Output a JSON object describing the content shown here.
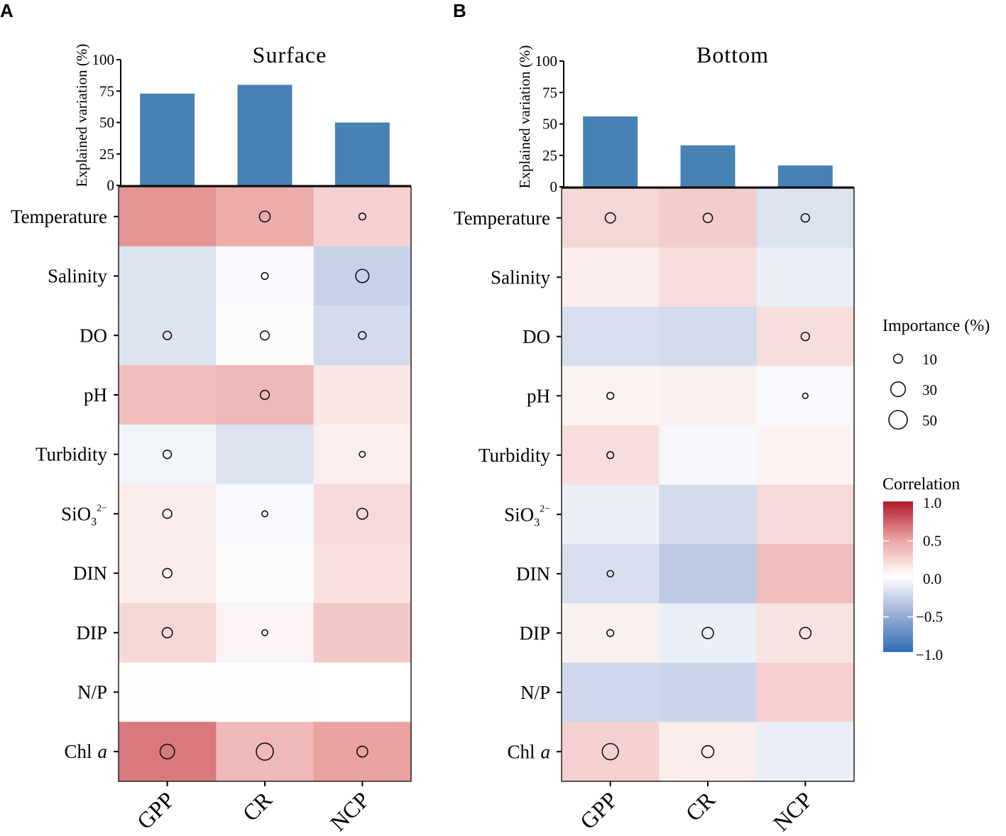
{
  "panel_letters": [
    "A",
    "B"
  ],
  "chart_data": [
    {
      "type": "heatmap",
      "title": "Surface",
      "bar_ylabel": "Explained variation (%)",
      "bar_ylim": [
        0,
        100
      ],
      "bar_yticks": [
        "0",
        "25",
        "50",
        "75",
        "100"
      ],
      "columns": [
        "GPP",
        "CR",
        "NCP"
      ],
      "explained_variation": [
        73,
        80,
        50
      ],
      "rows": [
        {
          "label": "Temperature",
          "correlation": [
            0.55,
            0.45,
            0.25
          ],
          "importance": [
            0,
            20,
            8
          ]
        },
        {
          "label": "Salinity",
          "correlation": [
            -0.18,
            -0.03,
            -0.28
          ],
          "importance": [
            0,
            8,
            30
          ]
        },
        {
          "label": "DO",
          "correlation": [
            -0.17,
            0.02,
            -0.22
          ],
          "importance": [
            12,
            14,
            10
          ]
        },
        {
          "label": "pH",
          "correlation": [
            0.35,
            0.38,
            0.13
          ],
          "importance": [
            0,
            14,
            0
          ]
        },
        {
          "label": "Turbidity",
          "correlation": [
            -0.07,
            -0.17,
            0.09
          ],
          "importance": [
            12,
            0,
            6
          ]
        },
        {
          "label": "SiO",
          "sub": "3",
          "sup": "2−",
          "correlation": [
            0.1,
            -0.04,
            0.2
          ],
          "importance": [
            14,
            6,
            20
          ]
        },
        {
          "label": "DIN",
          "correlation": [
            0.1,
            0.02,
            0.17
          ],
          "importance": [
            15,
            0,
            0
          ]
        },
        {
          "label": "DIP",
          "correlation": [
            0.22,
            0.06,
            0.3
          ],
          "importance": [
            18,
            6,
            0
          ]
        },
        {
          "label": "N/P",
          "correlation": [
            0.01,
            0.01,
            0.0
          ],
          "importance": [
            0,
            0,
            0
          ]
        },
        {
          "label": "Chl",
          "italic": "a",
          "correlation": [
            0.65,
            0.38,
            0.5
          ],
          "importance": [
            36,
            50,
            20
          ]
        }
      ]
    },
    {
      "type": "heatmap",
      "title": "Bottom",
      "bar_ylabel": "Explained variation (%)",
      "bar_ylim": [
        0,
        100
      ],
      "bar_yticks": [
        "0",
        "25",
        "50",
        "75",
        "100"
      ],
      "columns": [
        "GPP",
        "CR",
        "NCP"
      ],
      "explained_variation": [
        56,
        33,
        17
      ],
      "rows": [
        {
          "label": "Temperature",
          "correlation": [
            0.22,
            0.27,
            -0.18
          ],
          "importance": [
            18,
            15,
            12
          ]
        },
        {
          "label": "Salinity",
          "correlation": [
            0.1,
            0.18,
            -0.1
          ],
          "importance": [
            0,
            0,
            0
          ]
        },
        {
          "label": "DO",
          "correlation": [
            -0.2,
            -0.22,
            0.18
          ],
          "importance": [
            0,
            0,
            12
          ]
        },
        {
          "label": "pH",
          "correlation": [
            0.07,
            0.08,
            -0.04
          ],
          "importance": [
            8,
            0,
            5
          ]
        },
        {
          "label": "Turbidity",
          "correlation": [
            0.18,
            -0.05,
            0.07
          ],
          "importance": [
            8,
            0,
            0
          ]
        },
        {
          "label": "SiO",
          "sub": "3",
          "sup": "2−",
          "correlation": [
            -0.1,
            -0.22,
            0.2
          ],
          "importance": [
            0,
            0,
            0
          ]
        },
        {
          "label": "DIN",
          "correlation": [
            -0.2,
            -0.33,
            0.35
          ],
          "importance": [
            7,
            0,
            0
          ]
        },
        {
          "label": "DIP",
          "correlation": [
            0.08,
            -0.1,
            0.15
          ],
          "importance": [
            8,
            22,
            22
          ]
        },
        {
          "label": "N/P",
          "correlation": [
            -0.24,
            -0.26,
            0.25
          ],
          "importance": [
            0,
            0,
            0
          ]
        },
        {
          "label": "Chl",
          "italic": "a",
          "correlation": [
            0.25,
            0.1,
            -0.1
          ],
          "importance": [
            45,
            25,
            0
          ]
        }
      ]
    }
  ],
  "legend": {
    "size_title": "Importance (%)",
    "size_values": [
      10,
      30,
      50
    ],
    "size_labels": [
      "10",
      "30",
      "50"
    ],
    "color_title": "Correlation",
    "color_labels": [
      "1.0",
      "0.5",
      "0.0",
      "−0.5",
      "−1.0"
    ],
    "color_range": [
      -1,
      1
    ]
  },
  "colors": {
    "bar": "#4682B4",
    "neg": "#2E6DB4",
    "neg_mid": "#9BAED6",
    "zero": "#FFFFFF",
    "pos_mid": "#E9A3A0",
    "pos": "#B2182B"
  }
}
